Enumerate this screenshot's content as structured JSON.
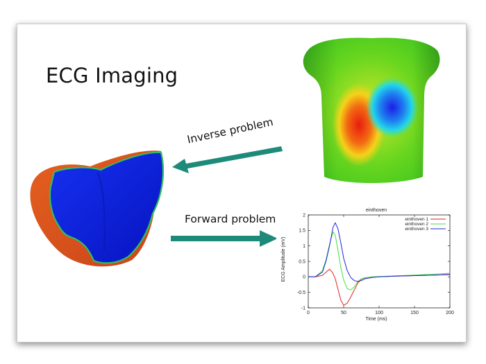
{
  "slide": {
    "title": "ECG Imaging",
    "inverse_label": "Inverse problem",
    "forward_label": "Forward problem",
    "colors": {
      "arrow": "#1d8a7a",
      "heart_blue": "#0a1fd6",
      "heart_orange": "#e0561e",
      "torso_hot": "#e82a10",
      "torso_cold": "#1d2ce8"
    }
  },
  "chart_data": {
    "type": "line",
    "title": "einthoven",
    "xlabel": "Time (ms)",
    "ylabel": "ECG Amplitude (mV)",
    "xlim": [
      0,
      200
    ],
    "ylim": [
      -1,
      2
    ],
    "xticks": [
      "0",
      "50",
      "100",
      "150",
      "200"
    ],
    "yticks": [
      "2",
      "1.5",
      "1",
      "0.5",
      "0",
      "-0.5",
      "-1"
    ],
    "legend_position": "top-right",
    "series": [
      {
        "name": "einthoven 1",
        "color": "#e02020",
        "x": [
          0,
          10,
          20,
          25,
          30,
          34,
          38,
          42,
          46,
          50,
          55,
          60,
          65,
          70,
          75,
          80,
          90,
          100,
          120,
          150,
          180,
          200
        ],
        "y": [
          0,
          0,
          0.05,
          0.15,
          0.25,
          0.15,
          -0.05,
          -0.4,
          -0.75,
          -0.92,
          -0.85,
          -0.65,
          -0.42,
          -0.2,
          -0.07,
          -0.03,
          0,
          0,
          0.02,
          0.04,
          0.06,
          0.07
        ]
      },
      {
        "name": "einthoven 2",
        "color": "#40e040",
        "x": [
          0,
          10,
          20,
          25,
          30,
          35,
          38,
          42,
          46,
          50,
          55,
          60,
          65,
          70,
          75,
          80,
          90,
          100,
          120,
          150,
          180,
          200
        ],
        "y": [
          0,
          0,
          0.2,
          0.55,
          1.05,
          1.45,
          1.35,
          0.85,
          0.3,
          -0.1,
          -0.38,
          -0.42,
          -0.32,
          -0.15,
          -0.06,
          -0.03,
          0,
          0.01,
          0.03,
          0.06,
          0.09,
          0.12
        ]
      },
      {
        "name": "einthoven 3",
        "color": "#2020e0",
        "x": [
          0,
          10,
          20,
          25,
          30,
          35,
          38,
          42,
          46,
          50,
          55,
          60,
          65,
          70,
          75,
          80,
          90,
          100,
          120,
          150,
          180,
          200
        ],
        "y": [
          0,
          0,
          0.15,
          0.5,
          1.0,
          1.6,
          1.75,
          1.55,
          1.1,
          0.6,
          0.2,
          -0.02,
          -0.12,
          -0.15,
          -0.12,
          -0.06,
          -0.02,
          0,
          0.02,
          0.04,
          0.06,
          0.08
        ]
      }
    ]
  }
}
